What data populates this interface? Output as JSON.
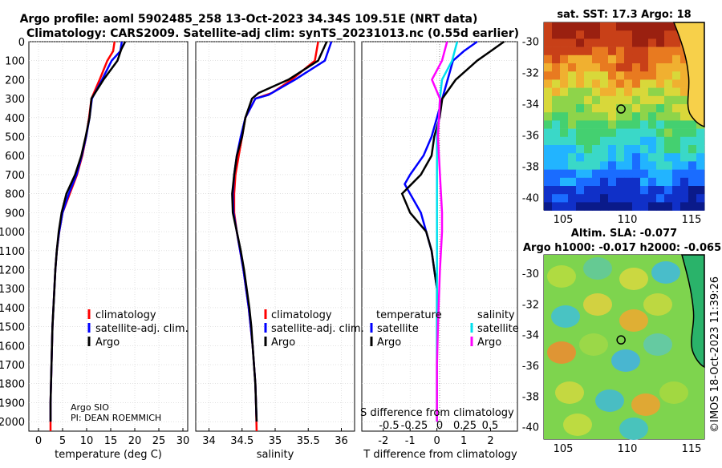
{
  "header": {
    "line1": "Argo profile: aoml 5902485_258 13-Oct-2023 34.34S 109.51E (NRT data)",
    "line2": "Climatology: CARS2009. Satellite-adj clim: synTS_20231013.nc (0.55d earlier)"
  },
  "depth_ticks": [
    "0",
    "100",
    "200",
    "300",
    "400",
    "500",
    "600",
    "700",
    "800",
    "900",
    "1000",
    "1100",
    "1200",
    "1300",
    "1400",
    "1500",
    "1600",
    "1700",
    "1800",
    "1900",
    "2000"
  ],
  "colors": {
    "climatology": "#ff0000",
    "satellite": "#0000ff",
    "argo": "#000000",
    "sat_salinity": "#00e0ee",
    "argo_salinity": "#ff00ff"
  },
  "credit": {
    "institution": "Argo SIO",
    "pi": "PI: DEAN ROEMMICH"
  },
  "timestamp": "©IMOS 18-Oct-2023 11:39:26",
  "legend_temp": [
    "climatology",
    "satellite-adj. clim.",
    "Argo"
  ],
  "legend_sal": [
    "climatology",
    "satellite-adj. clim.",
    "Argo"
  ],
  "legend_diff": {
    "temp_head": "temperature",
    "sal_head": "salinity",
    "temp_items": [
      "satellite",
      "Argo"
    ],
    "sal_items": [
      "satellite",
      "Argo"
    ]
  },
  "maps": {
    "sst_title": "sat. SST: 17.3 Argo: 18",
    "sla_title1": "Altim. SLA: -0.077",
    "sla_title2": "Argo h1000: -0.017 h2000: -0.065",
    "lat_ticks": [
      "-30",
      "-32",
      "-34",
      "-36",
      "-38",
      "-40"
    ],
    "lon_ticks": [
      "105",
      "110",
      "115"
    ],
    "float_lon": 109.51,
    "float_lat": -34.34
  },
  "chart_data": [
    {
      "type": "line",
      "name": "temperature",
      "xlabel": "temperature (deg C)",
      "xlim": [
        -2,
        31
      ],
      "ylim": [
        2050,
        0
      ],
      "xticks": [
        0,
        5,
        10,
        15,
        20,
        25,
        30
      ],
      "xtick_labels": [
        "0",
        "5",
        "10",
        "15",
        "20",
        "25",
        "30"
      ],
      "series": [
        {
          "name": "climatology",
          "color": "#ff0000",
          "points": [
            [
              15.8,
              0
            ],
            [
              15.5,
              50
            ],
            [
              14.3,
              100
            ],
            [
              12.7,
              200
            ],
            [
              11.0,
              300
            ],
            [
              10.5,
              400
            ],
            [
              9.9,
              500
            ],
            [
              9.1,
              600
            ],
            [
              8.0,
              700
            ],
            [
              6.5,
              800
            ],
            [
              5.0,
              900
            ],
            [
              4.3,
              1000
            ],
            [
              3.8,
              1100
            ],
            [
              3.5,
              1200
            ],
            [
              3.3,
              1300
            ],
            [
              3.1,
              1400
            ],
            [
              2.9,
              1500
            ],
            [
              2.8,
              1600
            ],
            [
              2.7,
              1700
            ],
            [
              2.6,
              1800
            ],
            [
              2.5,
              1900
            ],
            [
              2.5,
              2050
            ]
          ]
        },
        {
          "name": "satellite-adj. clim.",
          "color": "#0000ff",
          "points": [
            [
              17.3,
              0
            ],
            [
              17.0,
              50
            ],
            [
              15.2,
              100
            ],
            [
              13.2,
              200
            ],
            [
              11.1,
              300
            ],
            [
              10.6,
              400
            ],
            [
              9.9,
              500
            ],
            [
              9.0,
              600
            ],
            [
              7.9,
              700
            ],
            [
              6.3,
              800
            ],
            [
              5.0,
              900
            ],
            [
              4.3,
              1000
            ],
            [
              3.8,
              1100
            ],
            [
              3.5,
              1200
            ],
            [
              3.3,
              1300
            ],
            [
              3.1,
              1400
            ],
            [
              2.9,
              1500
            ],
            [
              2.8,
              1600
            ],
            [
              2.7,
              1700
            ],
            [
              2.6,
              1800
            ],
            [
              2.5,
              1900
            ],
            [
              2.5,
              2000
            ]
          ]
        },
        {
          "name": "Argo",
          "color": "#000000",
          "points": [
            [
              18.0,
              0
            ],
            [
              17.2,
              40
            ],
            [
              16.4,
              100
            ],
            [
              13.5,
              200
            ],
            [
              11.0,
              300
            ],
            [
              10.6,
              400
            ],
            [
              9.8,
              500
            ],
            [
              8.9,
              600
            ],
            [
              7.6,
              700
            ],
            [
              5.8,
              800
            ],
            [
              4.8,
              900
            ],
            [
              4.2,
              1000
            ],
            [
              3.8,
              1100
            ],
            [
              3.5,
              1200
            ],
            [
              3.3,
              1300
            ],
            [
              3.1,
              1400
            ],
            [
              2.9,
              1500
            ],
            [
              2.8,
              1600
            ],
            [
              2.7,
              1700
            ],
            [
              2.6,
              1800
            ],
            [
              2.5,
              1900
            ],
            [
              2.5,
              2000
            ]
          ]
        }
      ]
    },
    {
      "type": "line",
      "name": "salinity",
      "xlabel": "salinity",
      "xlim": [
        33.8,
        36.2
      ],
      "ylim": [
        2050,
        0
      ],
      "xticks": [
        34,
        34.5,
        35,
        35.5,
        36
      ],
      "xtick_labels": [
        "34",
        "34.5",
        "35",
        "35.5",
        "36"
      ],
      "series": [
        {
          "name": "climatology",
          "color": "#ff0000",
          "points": [
            [
              35.65,
              0
            ],
            [
              35.6,
              100
            ],
            [
              35.25,
              200
            ],
            [
              34.95,
              270
            ],
            [
              34.7,
              300
            ],
            [
              34.55,
              400
            ],
            [
              34.5,
              500
            ],
            [
              34.45,
              600
            ],
            [
              34.4,
              700
            ],
            [
              34.38,
              800
            ],
            [
              34.38,
              900
            ],
            [
              34.42,
              1000
            ],
            [
              34.47,
              1100
            ],
            [
              34.52,
              1200
            ],
            [
              34.56,
              1300
            ],
            [
              34.6,
              1400
            ],
            [
              34.63,
              1500
            ],
            [
              34.66,
              1600
            ],
            [
              34.68,
              1700
            ],
            [
              34.7,
              1800
            ],
            [
              34.71,
              1900
            ],
            [
              34.72,
              2050
            ]
          ]
        },
        {
          "name": "satellite-adj. clim.",
          "color": "#0000ff",
          "points": [
            [
              35.85,
              0
            ],
            [
              35.75,
              100
            ],
            [
              35.3,
              200
            ],
            [
              34.9,
              280
            ],
            [
              34.7,
              300
            ],
            [
              34.55,
              400
            ],
            [
              34.48,
              500
            ],
            [
              34.42,
              600
            ],
            [
              34.38,
              700
            ],
            [
              34.36,
              800
            ],
            [
              34.37,
              900
            ],
            [
              34.42,
              1000
            ],
            [
              34.47,
              1100
            ],
            [
              34.52,
              1200
            ],
            [
              34.56,
              1300
            ],
            [
              34.6,
              1400
            ],
            [
              34.63,
              1500
            ],
            [
              34.66,
              1600
            ],
            [
              34.68,
              1700
            ],
            [
              34.7,
              1800
            ],
            [
              34.71,
              1900
            ],
            [
              34.72,
              2000
            ]
          ]
        },
        {
          "name": "Argo",
          "color": "#000000",
          "points": [
            [
              35.78,
              0
            ],
            [
              35.65,
              100
            ],
            [
              35.2,
              200
            ],
            [
              34.75,
              270
            ],
            [
              34.65,
              300
            ],
            [
              34.55,
              400
            ],
            [
              34.5,
              500
            ],
            [
              34.42,
              600
            ],
            [
              34.38,
              700
            ],
            [
              34.35,
              800
            ],
            [
              34.36,
              900
            ],
            [
              34.42,
              1000
            ],
            [
              34.48,
              1100
            ],
            [
              34.53,
              1200
            ],
            [
              34.57,
              1300
            ],
            [
              34.61,
              1400
            ],
            [
              34.64,
              1500
            ],
            [
              34.66,
              1600
            ],
            [
              34.68,
              1700
            ],
            [
              34.7,
              1800
            ],
            [
              34.71,
              1900
            ],
            [
              34.72,
              2000
            ]
          ]
        }
      ]
    },
    {
      "type": "line",
      "name": "difference from climatology",
      "xlabel": "T difference from climatology",
      "xlabel2": "S difference from climatology",
      "xlim": [
        -2.8,
        3.0
      ],
      "ylim": [
        2050,
        0
      ],
      "xticks": [
        -2,
        -1,
        0,
        1,
        2
      ],
      "xtick_labels": [
        "-2",
        "-1",
        "0",
        "1",
        "2"
      ],
      "sticks": [
        -0.5,
        -0.25,
        0,
        0.25,
        0.5
      ],
      "stick_labels": [
        "-0.5",
        "-0.25",
        "0",
        "0.25",
        "0.5"
      ],
      "series": [
        {
          "name": "temperature satellite",
          "color": "#0000ff",
          "points": [
            [
              1.5,
              0
            ],
            [
              1.0,
              50
            ],
            [
              0.6,
              100
            ],
            [
              0.4,
              200
            ],
            [
              0.2,
              300
            ],
            [
              0.0,
              400
            ],
            [
              -0.2,
              500
            ],
            [
              -0.5,
              600
            ],
            [
              -1.0,
              700
            ],
            [
              -1.2,
              750
            ],
            [
              -1.0,
              800
            ],
            [
              -0.6,
              900
            ],
            [
              -0.4,
              1000
            ],
            [
              -0.2,
              1100
            ],
            [
              -0.1,
              1200
            ],
            [
              0,
              1300
            ],
            [
              0,
              1400
            ],
            [
              0,
              1500
            ],
            [
              0,
              1700
            ],
            [
              0,
              1900
            ],
            [
              0,
              2000
            ]
          ]
        },
        {
          "name": "temperature Argo",
          "color": "#000000",
          "points": [
            [
              2.5,
              0
            ],
            [
              2.0,
              50
            ],
            [
              1.5,
              100
            ],
            [
              0.7,
              200
            ],
            [
              0.2,
              300
            ],
            [
              0.1,
              400
            ],
            [
              -0.1,
              500
            ],
            [
              -0.2,
              600
            ],
            [
              -0.6,
              700
            ],
            [
              -1.3,
              800
            ],
            [
              -1.0,
              900
            ],
            [
              -0.4,
              1000
            ],
            [
              -0.2,
              1100
            ],
            [
              -0.1,
              1200
            ],
            [
              0,
              1300
            ],
            [
              0,
              1400
            ],
            [
              0,
              1600
            ],
            [
              0,
              1800
            ],
            [
              0,
              2000
            ]
          ]
        },
        {
          "name": "salinity satellite",
          "color": "#00e0ee",
          "points": [
            [
              0.2,
              0
            ],
            [
              0.15,
              100
            ],
            [
              0.05,
              200
            ],
            [
              0.03,
              300
            ],
            [
              0.02,
              400
            ],
            [
              0.0,
              500
            ],
            [
              0,
              700
            ],
            [
              0,
              900
            ],
            [
              0,
              1200
            ],
            [
              0,
              1500
            ],
            [
              0,
              1800
            ],
            [
              0,
              2000
            ]
          ]
        },
        {
          "name": "salinity Argo",
          "color": "#ff00ff",
          "points": [
            [
              0.1,
              0
            ],
            [
              0.05,
              100
            ],
            [
              -0.05,
              200
            ],
            [
              0.03,
              300
            ],
            [
              0.02,
              400
            ],
            [
              0.01,
              500
            ],
            [
              0.03,
              700
            ],
            [
              0.05,
              900
            ],
            [
              0.05,
              1000
            ],
            [
              0.03,
              1200
            ],
            [
              0.01,
              1500
            ],
            [
              0,
              1700
            ],
            [
              0,
              2000
            ]
          ]
        }
      ]
    }
  ]
}
